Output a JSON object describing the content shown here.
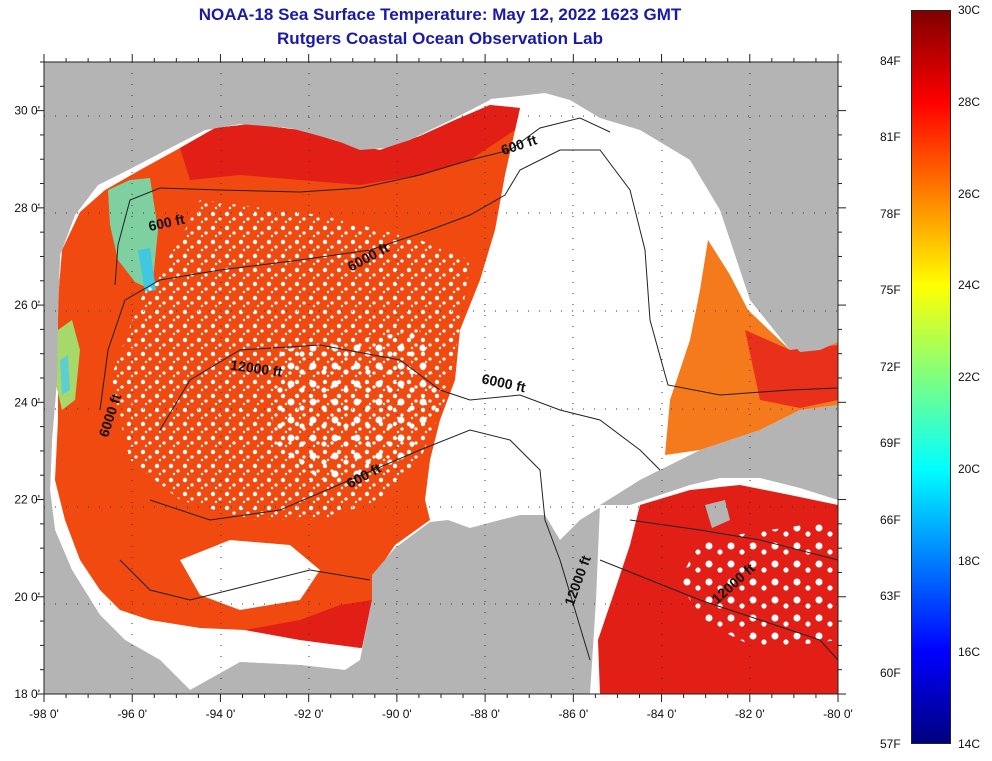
{
  "title": {
    "line1": "NOAA-18 Sea Surface Temperature:  May 12, 2022 1623 GMT",
    "line2": "Rutgers Coastal Ocean Observation Lab"
  },
  "map": {
    "lon_range": [
      -98,
      -80
    ],
    "lat_range": [
      18,
      31
    ],
    "lon_ticks": [
      "-98 0'",
      "-96 0'",
      "-94 0'",
      "-92 0'",
      "-90 0'",
      "-88 0'",
      "-86 0'",
      "-84 0'",
      "-82 0'",
      "-80 0'"
    ],
    "lat_ticks": [
      "18 0'",
      "20 0'",
      "22 0'",
      "24 0'",
      "26 0'",
      "28 0'",
      "30 0'"
    ],
    "colors": {
      "land": "#b4b4b4",
      "cloud": "#ffffff",
      "sst_warm": "#f04a10",
      "sst_hot": "#e11f16",
      "sst_orange": "#f57a1c",
      "sst_cool": "#7fd0a0",
      "sst_cyan": "#3fc8e0",
      "sst_yellow": "#c8e030",
      "contour": "#222222"
    },
    "contour_labels": [
      {
        "text": "600 ft",
        "lon": -95.2,
        "lat": 27.6,
        "angle": -12
      },
      {
        "text": "6000 ft",
        "lon": -90.6,
        "lat": 26.9,
        "angle": -28
      },
      {
        "text": "600 ft",
        "lon": -87.2,
        "lat": 29.2,
        "angle": -18
      },
      {
        "text": "12000 ft",
        "lon": -93.2,
        "lat": 24.6,
        "angle": 8
      },
      {
        "text": "6000 ft",
        "lon": -87.6,
        "lat": 24.3,
        "angle": 12
      },
      {
        "text": "6000 ft",
        "lon": -96.4,
        "lat": 23.7,
        "angle": -72
      },
      {
        "text": "600 ft",
        "lon": -90.7,
        "lat": 22.4,
        "angle": -28
      },
      {
        "text": "12000 ft",
        "lon": -85.8,
        "lat": 20.3,
        "angle": -70
      },
      {
        "text": "12000 ft",
        "lon": -82.3,
        "lat": 20.2,
        "angle": -42
      }
    ]
  },
  "colorbar": {
    "stops": [
      "#00007f",
      "#0000ff",
      "#007fff",
      "#00ffff",
      "#7fff7f",
      "#ffff00",
      "#ff7f00",
      "#ff0000",
      "#7f0000"
    ],
    "fahrenheit_labels": [
      "84F",
      "81F",
      "78F",
      "75F",
      "72F",
      "69F",
      "66F",
      "63F",
      "60F",
      "57F"
    ],
    "celsius_labels": [
      "30C",
      "28C",
      "26C",
      "24C",
      "22C",
      "20C",
      "18C",
      "16C",
      "14C"
    ]
  }
}
